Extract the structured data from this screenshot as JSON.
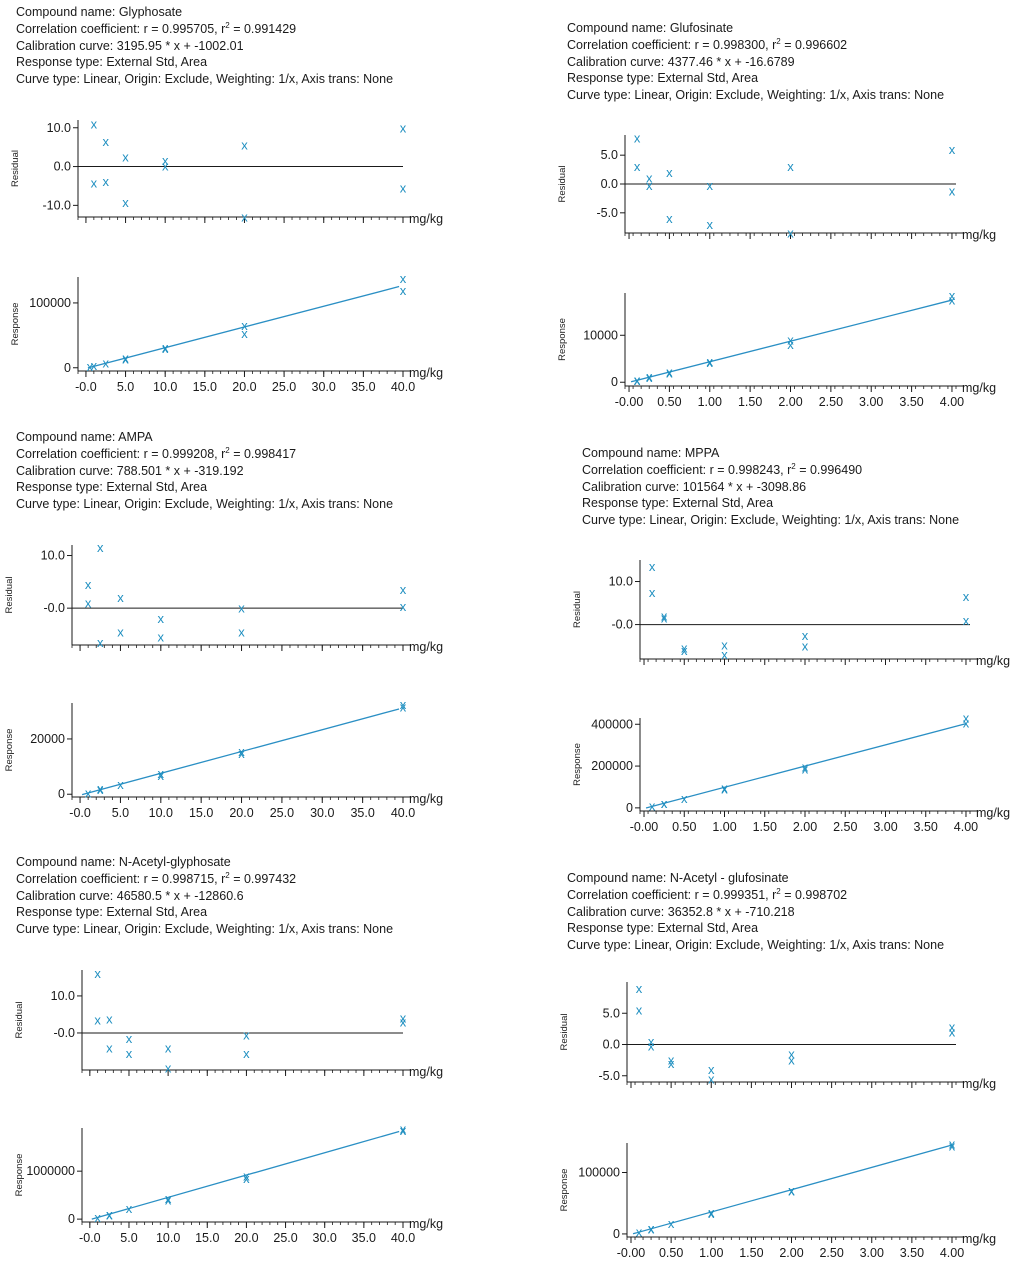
{
  "units": "mg/kg",
  "residual_label": "Residual",
  "response_label": "Response",
  "marker_color": "#1f8fc0",
  "fit_color": "#2a8fc4",
  "chart_data": [
    {
      "type": "scatter",
      "compound": "Glyphosate",
      "info": {
        "compound": "Compound name: Glyphosate",
        "corr_prefix": "Correlation coefficient: r = 0.995705, r",
        "corr_suffix": " = 0.991429",
        "curve": "Calibration curve: 3195.95 * x + -1002.01",
        "response": "Response type: External Std, Area",
        "curve_type": "Curve type: Linear, Origin: Exclude, Weighting: 1/x, Axis trans: None"
      },
      "slope": 3195.95,
      "intercept": -1002.01,
      "xlim": [
        -1,
        40
      ],
      "xticks": [
        0,
        5,
        10,
        15,
        20,
        25,
        30,
        35,
        40
      ],
      "xtick_labels": [
        "-0.0",
        "5.0",
        "10.0",
        "15.0",
        "20.0",
        "25.0",
        "30.0",
        "35.0",
        "40.0"
      ],
      "residual": {
        "ylim": [
          -13,
          12
        ],
        "yticks": [
          10,
          0,
          -10
        ],
        "ytick_labels": [
          "10.0",
          "0.0",
          "-10.0"
        ],
        "points": [
          [
            1,
            11
          ],
          [
            1,
            -4.3
          ],
          [
            2.5,
            6.5
          ],
          [
            2.5,
            -3.8
          ],
          [
            5,
            2.5
          ],
          [
            5,
            -9.2
          ],
          [
            10,
            1.5
          ],
          [
            10,
            0.2
          ],
          [
            20,
            5.5
          ],
          [
            20,
            -13
          ],
          [
            40,
            10
          ],
          [
            40,
            -5.5
          ]
        ]
      },
      "response": {
        "ylim": [
          -5000,
          140000
        ],
        "yticks": [
          100000,
          0
        ],
        "ytick_labels": [
          "100000",
          "0"
        ],
        "points": [
          [
            0.5,
            2000
          ],
          [
            1,
            3500
          ],
          [
            2.5,
            7000
          ],
          [
            5,
            13500
          ],
          [
            5,
            15000
          ],
          [
            10,
            30000
          ],
          [
            10,
            31000
          ],
          [
            20,
            65000
          ],
          [
            20,
            53000
          ],
          [
            40,
            138000
          ],
          [
            40,
            119000
          ]
        ]
      }
    },
    {
      "type": "scatter",
      "compound": "Glufosinate",
      "info": {
        "compound": "Compound name: Glufosinate",
        "corr_prefix": "Correlation coefficient: r = 0.998300, r",
        "corr_suffix": " = 0.996602",
        "curve": "Calibration curve: 4377.46 * x + -16.6789",
        "response": "Response type: External Std, Area",
        "curve_type": "Curve type: Linear, Origin: Exclude, Weighting: 1/x, Axis trans: None"
      },
      "slope": 4377.46,
      "intercept": -16.6789,
      "xlim": [
        -0.05,
        4.05
      ],
      "xticks": [
        0,
        0.5,
        1,
        1.5,
        2,
        2.5,
        3,
        3.5,
        4
      ],
      "xtick_labels": [
        "-0.00",
        "0.50",
        "1.00",
        "1.50",
        "2.00",
        "2.50",
        "3.00",
        "3.50",
        "4.00"
      ],
      "residual": {
        "ylim": [
          -8.5,
          8.5
        ],
        "yticks": [
          5,
          0,
          -5
        ],
        "ytick_labels": [
          "5.0",
          "0.0",
          "-5.0"
        ],
        "points": [
          [
            0.1,
            8
          ],
          [
            0.1,
            3
          ],
          [
            0.25,
            1
          ],
          [
            0.25,
            -0.3
          ],
          [
            0.5,
            2
          ],
          [
            0.5,
            -6
          ],
          [
            1,
            -0.3
          ],
          [
            1,
            -7
          ],
          [
            2,
            3
          ],
          [
            2,
            -8.5
          ],
          [
            4,
            6
          ],
          [
            4,
            -1.2
          ]
        ]
      },
      "response": {
        "ylim": [
          -800,
          19000
        ],
        "yticks": [
          10000,
          0
        ],
        "ytick_labels": [
          "10000",
          "0"
        ],
        "points": [
          [
            0.1,
            500
          ],
          [
            0.1,
            400
          ],
          [
            0.25,
            1000
          ],
          [
            0.25,
            1200
          ],
          [
            0.5,
            2200
          ],
          [
            0.5,
            2000
          ],
          [
            1,
            4400
          ],
          [
            1,
            4200
          ],
          [
            2,
            9000
          ],
          [
            2,
            8000
          ],
          [
            4,
            18500
          ],
          [
            4,
            17500
          ]
        ]
      }
    },
    {
      "type": "scatter",
      "compound": "AMPA",
      "info": {
        "compound": "Compound name: AMPA",
        "corr_prefix": "Correlation coefficient: r = 0.999208, r",
        "corr_suffix": " = 0.998417",
        "curve": "Calibration curve: 788.501 * x + -319.192",
        "response": "Response type: External Std, Area",
        "curve_type": "Curve type: Linear, Origin: Exclude, Weighting: 1/x, Axis trans: None"
      },
      "slope": 788.501,
      "intercept": -319.192,
      "xlim": [
        -1,
        40
      ],
      "xticks": [
        0,
        5,
        10,
        15,
        20,
        25,
        30,
        35,
        40
      ],
      "xtick_labels": [
        "-0.0",
        "5.0",
        "10.0",
        "15.0",
        "20.0",
        "25.0",
        "30.0",
        "35.0",
        "40.0"
      ],
      "residual": {
        "ylim": [
          -7,
          12
        ],
        "yticks": [
          10,
          0
        ],
        "ytick_labels": [
          "10.0",
          "-0.0"
        ],
        "points": [
          [
            1,
            4.5
          ],
          [
            1,
            1
          ],
          [
            2.5,
            11.5
          ],
          [
            2.5,
            -6.5
          ],
          [
            5,
            2
          ],
          [
            5,
            -4.5
          ],
          [
            10,
            -2
          ],
          [
            10,
            -5.5
          ],
          [
            20,
            0
          ],
          [
            20,
            -4.5
          ],
          [
            40,
            3.5
          ],
          [
            40,
            0.3
          ]
        ]
      },
      "response": {
        "ylim": [
          -1000,
          33000
        ],
        "yticks": [
          20000,
          0
        ],
        "ytick_labels": [
          "20000",
          "0"
        ],
        "points": [
          [
            1,
            500
          ],
          [
            2.5,
            1700
          ],
          [
            2.5,
            2000
          ],
          [
            5,
            3600
          ],
          [
            10,
            7500
          ],
          [
            10,
            6800
          ],
          [
            20,
            15500
          ],
          [
            20,
            14800
          ],
          [
            40,
            32500
          ],
          [
            40,
            31500
          ]
        ]
      }
    },
    {
      "type": "scatter",
      "compound": "MPPA",
      "info": {
        "compound": "Compound name: MPPA",
        "corr_prefix": "Correlation coefficient: r = 0.998243, r",
        "corr_suffix": " = 0.996490",
        "curve": "Calibration curve: 101564 * x + -3098.86",
        "response": "Response type: External Std, Area",
        "curve_type": "Curve type: Linear, Origin: Exclude, Weighting: 1/x, Axis trans: None"
      },
      "slope": 101564,
      "intercept": -3098.86,
      "xlim": [
        -0.05,
        4.05
      ],
      "xticks": [
        0,
        0.5,
        1,
        1.5,
        2,
        2.5,
        3,
        3.5,
        4
      ],
      "xtick_labels": [
        "-0.00",
        "0.50",
        "1.00",
        "1.50",
        "2.00",
        "2.50",
        "3.00",
        "3.50",
        "4.00"
      ],
      "residual": {
        "ylim": [
          -8,
          15
        ],
        "yticks": [
          10,
          0
        ],
        "ytick_labels": [
          "10.0",
          "-0.0"
        ],
        "points": [
          [
            0.1,
            13.5
          ],
          [
            0.1,
            7.5
          ],
          [
            0.25,
            2
          ],
          [
            0.25,
            1.5
          ],
          [
            0.5,
            -5.5
          ],
          [
            0.5,
            -6
          ],
          [
            1,
            -4.8
          ],
          [
            1,
            -7
          ],
          [
            2,
            -2.5
          ],
          [
            2,
            -5
          ],
          [
            4,
            6.5
          ],
          [
            4,
            1
          ]
        ]
      },
      "response": {
        "ylim": [
          -15000,
          430000
        ],
        "yticks": [
          400000,
          200000,
          0
        ],
        "ytick_labels": [
          "400000",
          "200000",
          "0"
        ],
        "points": [
          [
            0.1,
            10000
          ],
          [
            0.25,
            20000
          ],
          [
            0.25,
            22000
          ],
          [
            0.5,
            45000
          ],
          [
            1,
            95000
          ],
          [
            1,
            90000
          ],
          [
            2,
            195000
          ],
          [
            2,
            185000
          ],
          [
            4,
            430000
          ],
          [
            4,
            405000
          ]
        ]
      }
    },
    {
      "type": "scatter",
      "compound": "N-Acetyl-glyphosate",
      "info": {
        "compound": "Compound name: N-Acetyl-glyphosate",
        "corr_prefix": "Correlation coefficient: r = 0.998715, r",
        "corr_suffix": " = 0.997432",
        "curve": "Calibration curve: 46580.5 * x + -12860.6",
        "response": "Response type: External Std, Area",
        "curve_type": "Curve type: Linear, Origin: Exclude, Weighting: 1/x, Axis trans: None"
      },
      "slope": 46580.5,
      "intercept": -12860.6,
      "xlim": [
        -1,
        40
      ],
      "xticks": [
        0,
        5,
        10,
        15,
        20,
        25,
        30,
        35,
        40
      ],
      "xtick_labels": [
        "-0.0",
        "5.0",
        "10.0",
        "15.0",
        "20.0",
        "25.0",
        "30.0",
        "35.0",
        "40.0"
      ],
      "residual": {
        "ylim": [
          -10,
          17
        ],
        "yticks": [
          10,
          0
        ],
        "ytick_labels": [
          "10.0",
          "-0.0"
        ],
        "points": [
          [
            1,
            16
          ],
          [
            1,
            3.5
          ],
          [
            2.5,
            3.8
          ],
          [
            2.5,
            -4
          ],
          [
            5,
            -1.5
          ],
          [
            5,
            -5.5
          ],
          [
            10,
            -4
          ],
          [
            10,
            -9.5
          ],
          [
            20,
            -0.5
          ],
          [
            20,
            -5.5
          ],
          [
            40,
            4
          ],
          [
            40,
            3
          ]
        ]
      },
      "response": {
        "ylim": [
          -60000,
          1900000
        ],
        "yticks": [
          1000000,
          0
        ],
        "ytick_labels": [
          "1000000",
          "0"
        ],
        "points": [
          [
            1,
            30000
          ],
          [
            2.5,
            90000
          ],
          [
            2.5,
            100000
          ],
          [
            5,
            220000
          ],
          [
            10,
            430000
          ],
          [
            10,
            400000
          ],
          [
            20,
            900000
          ],
          [
            20,
            850000
          ],
          [
            40,
            1880000
          ],
          [
            40,
            1850000
          ]
        ]
      }
    },
    {
      "type": "scatter",
      "compound": "N-Acetyl - glufosinate",
      "info": {
        "compound": "Compound name: N-Acetyl - glufosinate",
        "corr_prefix": "Correlation coefficient: r = 0.999351, r",
        "corr_suffix": " = 0.998702",
        "curve": "Calibration curve: 36352.8 * x + -710.218",
        "response": "Response type: External Std, Area",
        "curve_type": "Curve type: Linear, Origin: Exclude, Weighting: 1/x, Axis trans: None"
      },
      "slope": 36352.8,
      "intercept": -710.218,
      "xlim": [
        -0.05,
        4.05
      ],
      "xticks": [
        0,
        0.5,
        1,
        1.5,
        2,
        2.5,
        3,
        3.5,
        4
      ],
      "xtick_labels": [
        "-0.00",
        "0.50",
        "1.00",
        "1.50",
        "2.00",
        "2.50",
        "3.00",
        "3.50",
        "4.00"
      ],
      "residual": {
        "ylim": [
          -6,
          10
        ],
        "yticks": [
          5,
          0,
          -5
        ],
        "ytick_labels": [
          "5.0",
          "0.0",
          "-5.0"
        ],
        "points": [
          [
            0.1,
            9
          ],
          [
            0.1,
            5.5
          ],
          [
            0.25,
            0.5
          ],
          [
            0.25,
            -0.2
          ],
          [
            0.5,
            -2.5
          ],
          [
            0.5,
            -3
          ],
          [
            1,
            -4
          ],
          [
            1,
            -5.5
          ],
          [
            2,
            -1.5
          ],
          [
            2,
            -2.5
          ],
          [
            4,
            2.8
          ],
          [
            4,
            2
          ]
        ]
      },
      "response": {
        "ylim": [
          -5000,
          148000
        ],
        "yticks": [
          100000,
          0
        ],
        "ytick_labels": [
          "100000",
          "0"
        ],
        "points": [
          [
            0.1,
            3500
          ],
          [
            0.25,
            8000
          ],
          [
            0.25,
            9000
          ],
          [
            0.5,
            17000
          ],
          [
            1,
            35000
          ],
          [
            1,
            33000
          ],
          [
            2,
            71000
          ],
          [
            2,
            70000
          ],
          [
            4,
            146000
          ],
          [
            4,
            143000
          ]
        ]
      }
    }
  ]
}
